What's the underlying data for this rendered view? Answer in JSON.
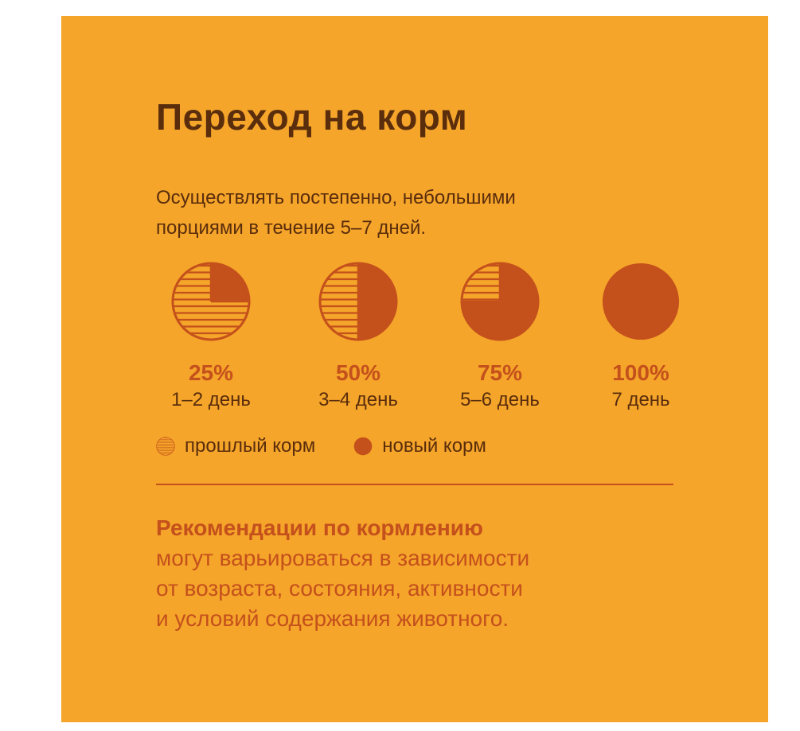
{
  "title": "Переход на корм",
  "subtitle": {
    "line1": "Осуществлять постепенно, небольшими",
    "line2": "порциями в течение 5–7 дней."
  },
  "colors": {
    "background": "#f5a52a",
    "new_food": "#c4501c",
    "text_dark": "#5a2d0c"
  },
  "stages": [
    {
      "percent_label": "25%",
      "days_label": "1–2 день",
      "new_food_fraction": 0.25
    },
    {
      "percent_label": "50%",
      "days_label": "3–4 день",
      "new_food_fraction": 0.5
    },
    {
      "percent_label": "75%",
      "days_label": "5–6 день",
      "new_food_fraction": 0.75
    },
    {
      "percent_label": "100%",
      "days_label": "7 день",
      "new_food_fraction": 1.0
    }
  ],
  "legend": {
    "old_food": {
      "icon": "striped-circle-icon",
      "label": "прошлый корм"
    },
    "new_food": {
      "icon": "filled-circle-icon",
      "label": "новый корм"
    }
  },
  "note": {
    "heading": "Рекомендации по кормлению",
    "line1": "могут варьироваться в зависимости",
    "line2": "от возраста, состояния, активности",
    "line3": "и условий содержания животного."
  }
}
